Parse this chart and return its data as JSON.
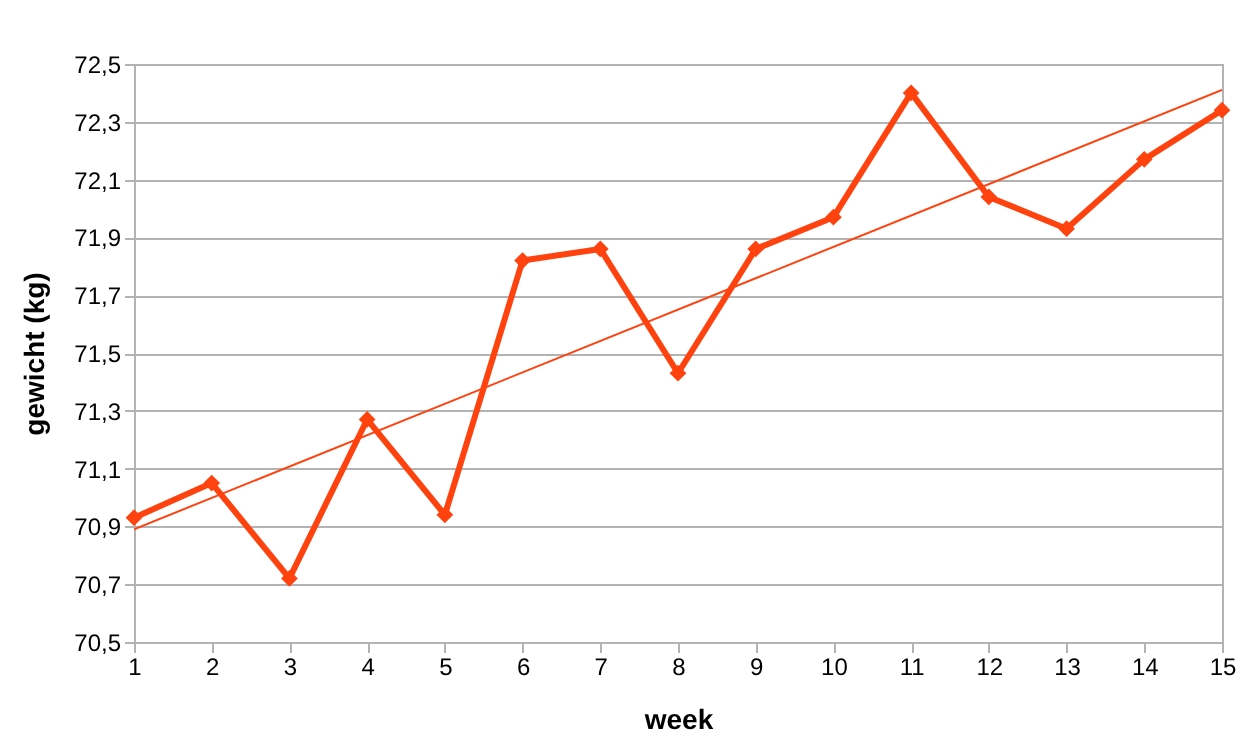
{
  "chart_data": {
    "type": "line",
    "xlabel": "week",
    "ylabel": "gewicht (kg)",
    "x": [
      1,
      2,
      3,
      4,
      5,
      6,
      7,
      8,
      9,
      10,
      11,
      12,
      13,
      14,
      15
    ],
    "series": [
      {
        "color": "#ff420e",
        "marker": "diamond",
        "values": [
          70.93,
          71.05,
          70.72,
          71.27,
          70.94,
          71.82,
          71.86,
          71.43,
          71.86,
          71.97,
          72.4,
          72.04,
          71.93,
          72.17,
          72.34
        ]
      },
      {
        "type": "line",
        "color": "#ff420e",
        "marker": "none",
        "x": [
          1,
          15
        ],
        "values": [
          70.89,
          72.41
        ]
      }
    ],
    "xlim": [
      1,
      15
    ],
    "xticks": [
      1,
      2,
      3,
      4,
      5,
      6,
      7,
      8,
      9,
      10,
      11,
      12,
      13,
      14,
      15
    ],
    "ylim": [
      70.5,
      72.5
    ],
    "yticks": [
      {
        "value": 70.5,
        "label": "70,5"
      },
      {
        "value": 70.7,
        "label": "70,7"
      },
      {
        "value": 70.9,
        "label": "70,9"
      },
      {
        "value": 71.1,
        "label": "71,1"
      },
      {
        "value": 71.3,
        "label": "71,3"
      },
      {
        "value": 71.5,
        "label": "71,5"
      },
      {
        "value": 71.7,
        "label": "71,7"
      },
      {
        "value": 71.9,
        "label": "71,9"
      },
      {
        "value": 72.1,
        "label": "72,1"
      },
      {
        "value": 72.3,
        "label": "72,3"
      },
      {
        "value": 72.5,
        "label": "72,5"
      }
    ],
    "grid": "y"
  }
}
